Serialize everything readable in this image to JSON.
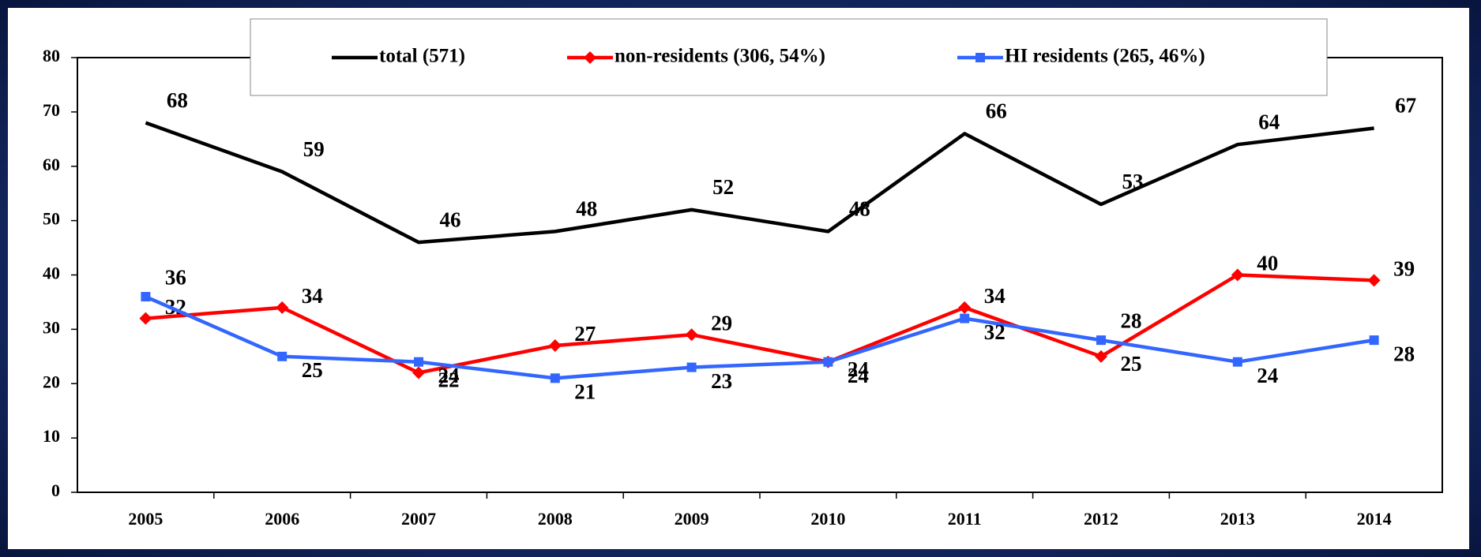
{
  "chart_data": {
    "type": "line",
    "categories": [
      "2005",
      "2006",
      "2007",
      "2008",
      "2009",
      "2010",
      "2011",
      "2012",
      "2013",
      "2014"
    ],
    "series": [
      {
        "name": "total (571)",
        "color": "#000000",
        "marker": "none",
        "values": [
          68,
          59,
          46,
          48,
          52,
          48,
          66,
          53,
          64,
          67
        ]
      },
      {
        "name": "non-residents (306, 54%)",
        "color": "#ff0000",
        "marker": "diamond",
        "values": [
          32,
          34,
          22,
          27,
          29,
          24,
          34,
          25,
          40,
          39
        ]
      },
      {
        "name": "HI residents (265, 46%)",
        "color": "#3366ff",
        "marker": "square",
        "values": [
          36,
          25,
          24,
          21,
          23,
          24,
          32,
          28,
          24,
          28
        ]
      }
    ],
    "ylim": [
      0,
      80
    ],
    "yticks": [
      0,
      10,
      20,
      30,
      40,
      50,
      60,
      70,
      80
    ],
    "grid": false,
    "legend": "top"
  }
}
